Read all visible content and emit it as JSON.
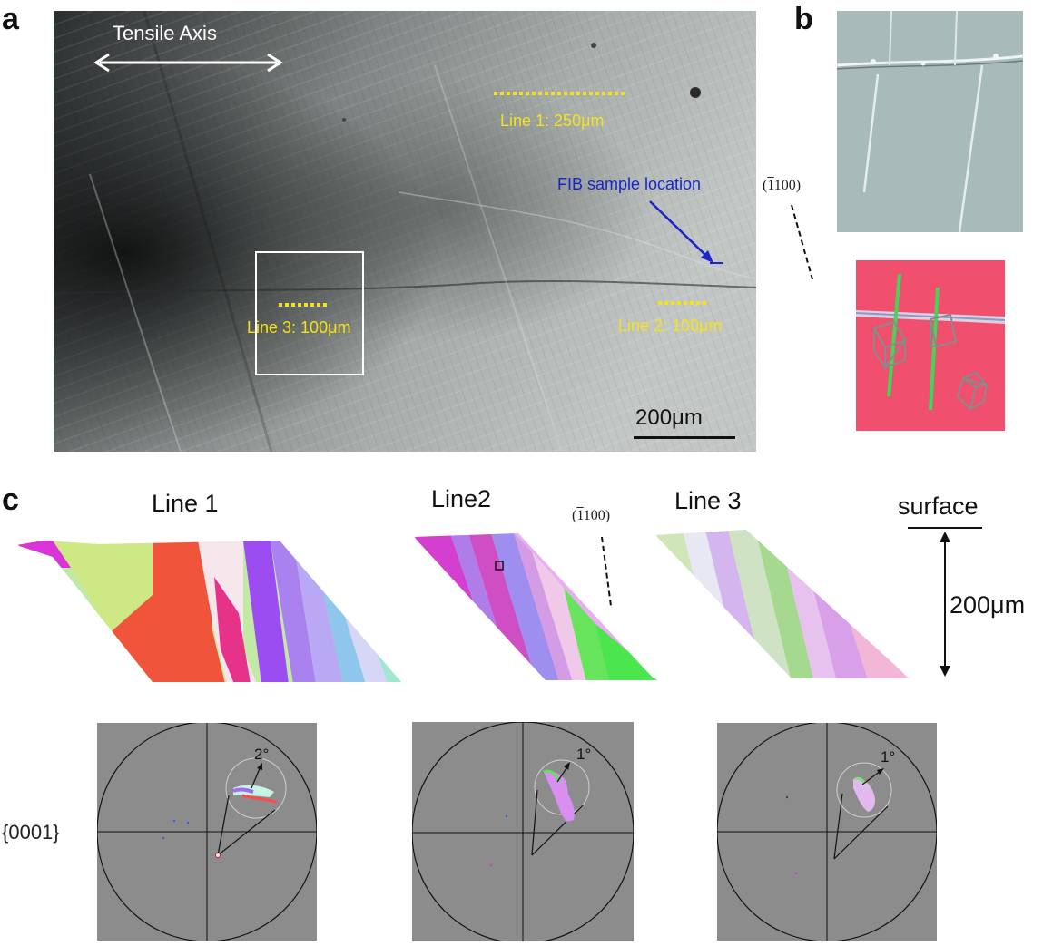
{
  "panels": {
    "a": {
      "letter": "a",
      "axis_label": "Tensile Axis",
      "line1_label": "Line 1: 250μm",
      "line2_label": "Line 2: 100μm",
      "line3_label": "Line 3: 100μm",
      "fib_label": "FIB sample location",
      "scale_label": "200μm"
    },
    "b": {
      "letter": "b",
      "plane_bar": "1",
      "plane_rest": "100",
      "plane_open": "(",
      "plane_close": ")"
    },
    "c": {
      "letter": "c",
      "titles": [
        "Line 1",
        "Line2",
        "Line 3"
      ],
      "surface_label": "surface",
      "depth_label": "200μm",
      "plane_bar": "1",
      "plane_rest": "100",
      "plane_open": "(",
      "plane_close": ")",
      "pole_label": "{0001}",
      "pole_angles": [
        "2°",
        "1°",
        "1°"
      ]
    }
  },
  "colors": {
    "yellow_marker": "#f5e21a",
    "fib_blue": "#1a25c9",
    "ebsd_pink": "#f0506e",
    "pole_bg": "#8c8c8c"
  }
}
